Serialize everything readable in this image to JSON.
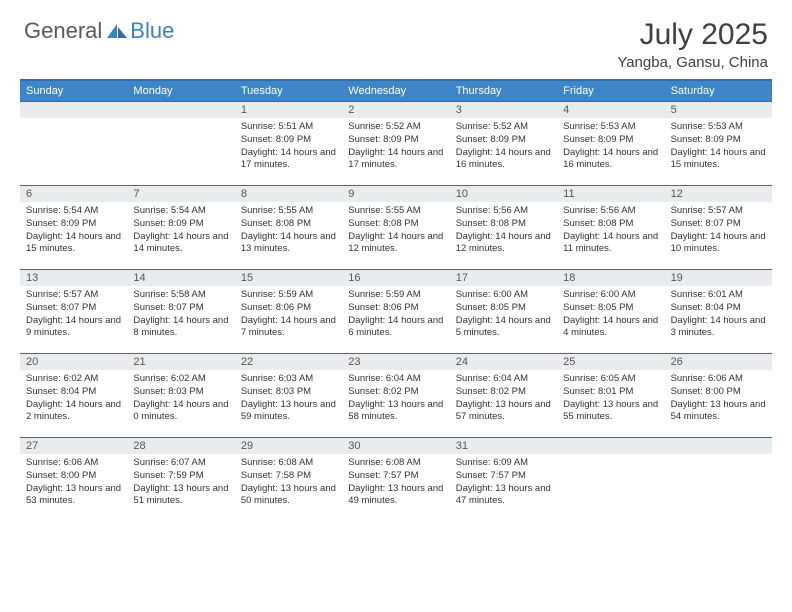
{
  "brand": {
    "first": "General",
    "second": "Blue"
  },
  "title": "July 2025",
  "location": "Yangba, Gansu, China",
  "colors": {
    "header_bg": "#3d85c6",
    "header_border": "#2f6fa5",
    "daynum_bg": "#e9ecef",
    "brand_gray": "#5a5a5a",
    "brand_blue": "#3b82c4"
  },
  "days_of_week": [
    "Sunday",
    "Monday",
    "Tuesday",
    "Wednesday",
    "Thursday",
    "Friday",
    "Saturday"
  ],
  "weeks": [
    [
      null,
      null,
      {
        "n": "1",
        "sr": "5:51 AM",
        "ss": "8:09 PM",
        "dl": "14 hours and 17 minutes."
      },
      {
        "n": "2",
        "sr": "5:52 AM",
        "ss": "8:09 PM",
        "dl": "14 hours and 17 minutes."
      },
      {
        "n": "3",
        "sr": "5:52 AM",
        "ss": "8:09 PM",
        "dl": "14 hours and 16 minutes."
      },
      {
        "n": "4",
        "sr": "5:53 AM",
        "ss": "8:09 PM",
        "dl": "14 hours and 16 minutes."
      },
      {
        "n": "5",
        "sr": "5:53 AM",
        "ss": "8:09 PM",
        "dl": "14 hours and 15 minutes."
      }
    ],
    [
      {
        "n": "6",
        "sr": "5:54 AM",
        "ss": "8:09 PM",
        "dl": "14 hours and 15 minutes."
      },
      {
        "n": "7",
        "sr": "5:54 AM",
        "ss": "8:09 PM",
        "dl": "14 hours and 14 minutes."
      },
      {
        "n": "8",
        "sr": "5:55 AM",
        "ss": "8:08 PM",
        "dl": "14 hours and 13 minutes."
      },
      {
        "n": "9",
        "sr": "5:55 AM",
        "ss": "8:08 PM",
        "dl": "14 hours and 12 minutes."
      },
      {
        "n": "10",
        "sr": "5:56 AM",
        "ss": "8:08 PM",
        "dl": "14 hours and 12 minutes."
      },
      {
        "n": "11",
        "sr": "5:56 AM",
        "ss": "8:08 PM",
        "dl": "14 hours and 11 minutes."
      },
      {
        "n": "12",
        "sr": "5:57 AM",
        "ss": "8:07 PM",
        "dl": "14 hours and 10 minutes."
      }
    ],
    [
      {
        "n": "13",
        "sr": "5:57 AM",
        "ss": "8:07 PM",
        "dl": "14 hours and 9 minutes."
      },
      {
        "n": "14",
        "sr": "5:58 AM",
        "ss": "8:07 PM",
        "dl": "14 hours and 8 minutes."
      },
      {
        "n": "15",
        "sr": "5:59 AM",
        "ss": "8:06 PM",
        "dl": "14 hours and 7 minutes."
      },
      {
        "n": "16",
        "sr": "5:59 AM",
        "ss": "8:06 PM",
        "dl": "14 hours and 6 minutes."
      },
      {
        "n": "17",
        "sr": "6:00 AM",
        "ss": "8:05 PM",
        "dl": "14 hours and 5 minutes."
      },
      {
        "n": "18",
        "sr": "6:00 AM",
        "ss": "8:05 PM",
        "dl": "14 hours and 4 minutes."
      },
      {
        "n": "19",
        "sr": "6:01 AM",
        "ss": "8:04 PM",
        "dl": "14 hours and 3 minutes."
      }
    ],
    [
      {
        "n": "20",
        "sr": "6:02 AM",
        "ss": "8:04 PM",
        "dl": "14 hours and 2 minutes."
      },
      {
        "n": "21",
        "sr": "6:02 AM",
        "ss": "8:03 PM",
        "dl": "14 hours and 0 minutes."
      },
      {
        "n": "22",
        "sr": "6:03 AM",
        "ss": "8:03 PM",
        "dl": "13 hours and 59 minutes."
      },
      {
        "n": "23",
        "sr": "6:04 AM",
        "ss": "8:02 PM",
        "dl": "13 hours and 58 minutes."
      },
      {
        "n": "24",
        "sr": "6:04 AM",
        "ss": "8:02 PM",
        "dl": "13 hours and 57 minutes."
      },
      {
        "n": "25",
        "sr": "6:05 AM",
        "ss": "8:01 PM",
        "dl": "13 hours and 55 minutes."
      },
      {
        "n": "26",
        "sr": "6:06 AM",
        "ss": "8:00 PM",
        "dl": "13 hours and 54 minutes."
      }
    ],
    [
      {
        "n": "27",
        "sr": "6:06 AM",
        "ss": "8:00 PM",
        "dl": "13 hours and 53 minutes."
      },
      {
        "n": "28",
        "sr": "6:07 AM",
        "ss": "7:59 PM",
        "dl": "13 hours and 51 minutes."
      },
      {
        "n": "29",
        "sr": "6:08 AM",
        "ss": "7:58 PM",
        "dl": "13 hours and 50 minutes."
      },
      {
        "n": "30",
        "sr": "6:08 AM",
        "ss": "7:57 PM",
        "dl": "13 hours and 49 minutes."
      },
      {
        "n": "31",
        "sr": "6:09 AM",
        "ss": "7:57 PM",
        "dl": "13 hours and 47 minutes."
      },
      null,
      null
    ]
  ],
  "labels": {
    "sunrise": "Sunrise:",
    "sunset": "Sunset:",
    "daylight": "Daylight:"
  }
}
